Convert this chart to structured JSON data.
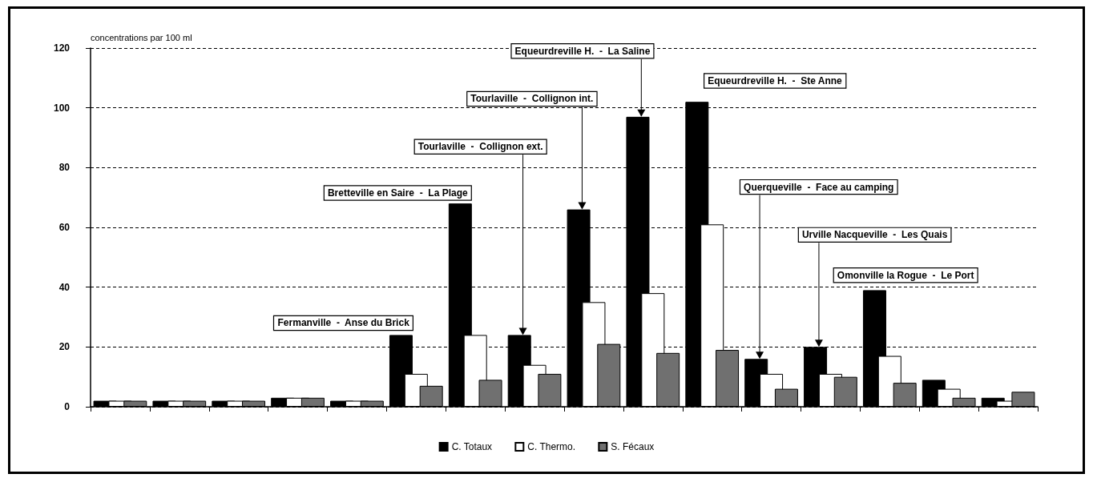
{
  "chart_data": {
    "type": "bar",
    "ylabel": "concentrations par 100 ml",
    "categories": [
      null,
      null,
      null,
      null,
      null,
      null,
      null,
      null,
      null,
      null,
      null,
      null,
      null,
      null,
      null,
      null
    ],
    "series": [
      {
        "name": "C. Totaux",
        "color": "#000000",
        "values": [
          2,
          2,
          2,
          3,
          2,
          24,
          68,
          24,
          66,
          97,
          102,
          16,
          20,
          39,
          9,
          3
        ]
      },
      {
        "name": "C. Thermo.",
        "color": "#ffffff",
        "values": [
          2,
          2,
          2,
          3,
          2,
          11,
          24,
          14,
          35,
          38,
          61,
          11,
          11,
          17,
          6,
          2
        ]
      },
      {
        "name": "S. Fécaux",
        "color": "#707070",
        "values": [
          2,
          2,
          2,
          3,
          2,
          7,
          9,
          11,
          21,
          18,
          19,
          6,
          10,
          8,
          3,
          5
        ]
      }
    ],
    "ylim": [
      0,
      120
    ],
    "yticks": [
      0,
      20,
      40,
      60,
      80,
      100,
      120
    ],
    "grid": "y",
    "legend": "bottom",
    "annotations": [
      "Fermanville  -  Anse du Brick",
      "Bretteville en Saire  -  La Plage",
      "Tourlaville  -  Collignon ext.",
      "Tourlaville  -  Collignon int.",
      "Equeurdreville H.  -  La Saline",
      "Equeurdreville H.  -  Ste Anne",
      "Querqueville  -  Face au camping",
      "Urville Nacqueville  -  Les Quais",
      "Omonville la Rogue  -  Le Port"
    ]
  }
}
